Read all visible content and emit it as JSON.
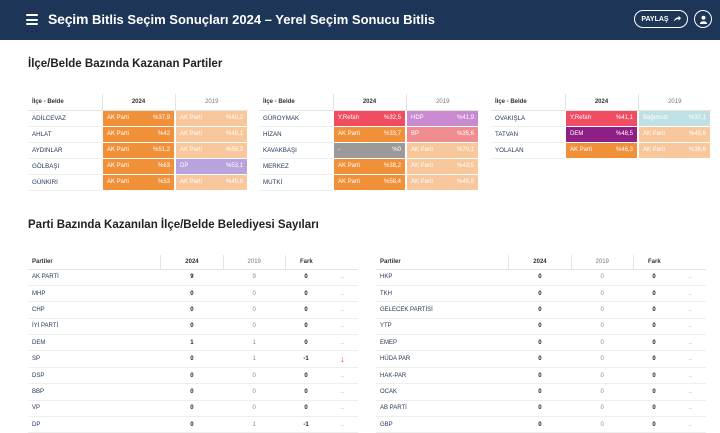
{
  "header": {
    "brand": "Seçim",
    "title": "Bitlis Seçim Sonuçları 2024 – Yerel Seçim Sonucu Bitlis",
    "share_label": "PAYLAŞ"
  },
  "colors": {
    "header_bg": "#1d3557",
    "ak_2024": "#f0913a",
    "ak_2019": "#f8c79b",
    "yrefah": "#f04d63",
    "hdp": "#c98ad0",
    "bp": "#ef8c90",
    "dp_2019": "#b9a3dd",
    "dem": "#8f1f86",
    "bagimsiz": "#bfe1e6",
    "empty": "#9a9a9a"
  },
  "section1": {
    "title": "İlçe/Belde Bazında Kazanan Partiler"
  },
  "district_tables": [
    {
      "headers": {
        "name": "İlçe - Belde",
        "y2024": "2024",
        "y2019": "2019"
      },
      "rows": [
        {
          "name": "ADİLCEVAZ",
          "r24": {
            "party": "AK Parti",
            "pct": "%37,9",
            "color": "#f0913a"
          },
          "r19": {
            "party": "AK Parti",
            "pct": "%40,2",
            "color": "#f8c79b"
          }
        },
        {
          "name": "AHLAT",
          "r24": {
            "party": "AK Parti",
            "pct": "%42",
            "color": "#f0913a"
          },
          "r19": {
            "party": "AK Parti",
            "pct": "%48,1",
            "color": "#f8c79b"
          }
        },
        {
          "name": "AYDINLAR",
          "r24": {
            "party": "AK Parti",
            "pct": "%51,2",
            "color": "#f0913a"
          },
          "r19": {
            "party": "AK Parti",
            "pct": "%58,3",
            "color": "#f8c79b"
          }
        },
        {
          "name": "GÖLBAŞI",
          "r24": {
            "party": "AK Parti",
            "pct": "%63",
            "color": "#f0913a"
          },
          "r19": {
            "party": "DP",
            "pct": "%53,1",
            "color": "#b9a3dd"
          }
        },
        {
          "name": "GÜNKIRI",
          "r24": {
            "party": "AK Parti",
            "pct": "%53",
            "color": "#f0913a"
          },
          "r19": {
            "party": "AK Parti",
            "pct": "%45,8",
            "color": "#f8c79b"
          }
        }
      ]
    },
    {
      "headers": {
        "name": "İlçe - Belde",
        "y2024": "2024",
        "y2019": "2019"
      },
      "rows": [
        {
          "name": "GÜROYMAK",
          "r24": {
            "party": "Y.Refah",
            "pct": "%32,5",
            "color": "#f04d63"
          },
          "r19": {
            "party": "HDP",
            "pct": "%41,9",
            "color": "#c98ad0"
          }
        },
        {
          "name": "HİZAN",
          "r24": {
            "party": "AK Parti",
            "pct": "%33,7",
            "color": "#f0913a"
          },
          "r19": {
            "party": "BP",
            "pct": "%35,6",
            "color": "#ef8c90"
          }
        },
        {
          "name": "KAVAKBAŞI",
          "r24": {
            "party": "-",
            "pct": "%0",
            "color": "#9a9a9a"
          },
          "r19": {
            "party": "AK Parti",
            "pct": "%70,1",
            "color": "#f8c79b"
          }
        },
        {
          "name": "MERKEZ",
          "r24": {
            "party": "AK Parti",
            "pct": "%38,2",
            "color": "#f0913a"
          },
          "r19": {
            "party": "AK Parti",
            "pct": "%43,5",
            "color": "#f8c79b"
          }
        },
        {
          "name": "MUTKİ",
          "r24": {
            "party": "AK Parti",
            "pct": "%58,4",
            "color": "#f0913a"
          },
          "r19": {
            "party": "AK Parti",
            "pct": "%45,8",
            "color": "#f8c79b"
          }
        }
      ]
    },
    {
      "headers": {
        "name": "İlçe - Belde",
        "y2024": "2024",
        "y2019": "2019"
      },
      "rows": [
        {
          "name": "OVAKIŞLA",
          "r24": {
            "party": "Y.Refah",
            "pct": "%41,1",
            "color": "#f04d63"
          },
          "r19": {
            "party": "Bağımsız",
            "pct": "%37,1",
            "color": "#bfe1e6"
          }
        },
        {
          "name": "TATVAN",
          "r24": {
            "party": "DEM",
            "pct": "%48,5",
            "color": "#8f1f86"
          },
          "r19": {
            "party": "AK Parti",
            "pct": "%45,6",
            "color": "#f8c79b"
          }
        },
        {
          "name": "YOLALAN",
          "r24": {
            "party": "AK Parti",
            "pct": "%46,3",
            "color": "#f0913a"
          },
          "r19": {
            "party": "AK Parti",
            "pct": "%36,6",
            "color": "#f8c79b"
          }
        }
      ]
    }
  ],
  "section2": {
    "title": "Parti Bazında Kazanılan İlçe/Belde Belediyesi Sayıları"
  },
  "party_tables": [
    {
      "headers": {
        "name": "Partiler",
        "y2024": "2024",
        "y2019": "2019",
        "diff": "Fark"
      },
      "rows": [
        {
          "name": "AK PARTİ",
          "v24": "9",
          "v19": "9",
          "diff": "0",
          "trend": "..",
          "down": false
        },
        {
          "name": "MHP",
          "v24": "0",
          "v19": "0",
          "diff": "0",
          "trend": "..",
          "down": false
        },
        {
          "name": "CHP",
          "v24": "0",
          "v19": "0",
          "diff": "0",
          "trend": "..",
          "down": false
        },
        {
          "name": "İYİ PARTİ",
          "v24": "0",
          "v19": "0",
          "diff": "0",
          "trend": "..",
          "down": false
        },
        {
          "name": "DEM",
          "v24": "1",
          "v19": "1",
          "diff": "0",
          "trend": "..",
          "down": false
        },
        {
          "name": "SP",
          "v24": "0",
          "v19": "1",
          "diff": "-1",
          "trend": "↓",
          "down": true
        },
        {
          "name": "DSP",
          "v24": "0",
          "v19": "0",
          "diff": "0",
          "trend": "..",
          "down": false
        },
        {
          "name": "BBP",
          "v24": "0",
          "v19": "0",
          "diff": "0",
          "trend": "..",
          "down": false
        },
        {
          "name": "VP",
          "v24": "0",
          "v19": "0",
          "diff": "0",
          "trend": "..",
          "down": false
        },
        {
          "name": "DP",
          "v24": "0",
          "v19": "1",
          "diff": "-1",
          "trend": "..",
          "down": false
        }
      ]
    },
    {
      "headers": {
        "name": "Partiler",
        "y2024": "2024",
        "y2019": "2019",
        "diff": "Fark"
      },
      "rows": [
        {
          "name": "HKP",
          "v24": "0",
          "v19": "0",
          "diff": "0",
          "trend": "..",
          "down": false
        },
        {
          "name": "TKH",
          "v24": "0",
          "v19": "0",
          "diff": "0",
          "trend": "..",
          "down": false
        },
        {
          "name": "GELECEK PARTİSİ",
          "v24": "0",
          "v19": "0",
          "diff": "0",
          "trend": "..",
          "down": false
        },
        {
          "name": "YTP",
          "v24": "0",
          "v19": "0",
          "diff": "0",
          "trend": "..",
          "down": false
        },
        {
          "name": "EMEP",
          "v24": "0",
          "v19": "0",
          "diff": "0",
          "trend": "..",
          "down": false
        },
        {
          "name": "HÜDA PAR",
          "v24": "0",
          "v19": "0",
          "diff": "0",
          "trend": "..",
          "down": false
        },
        {
          "name": "HAK-PAR",
          "v24": "0",
          "v19": "0",
          "diff": "0",
          "trend": "..",
          "down": false
        },
        {
          "name": "OCAK",
          "v24": "0",
          "v19": "0",
          "diff": "0",
          "trend": "..",
          "down": false
        },
        {
          "name": "AB PARTİ",
          "v24": "0",
          "v19": "0",
          "diff": "0",
          "trend": "..",
          "down": false
        },
        {
          "name": "GBP",
          "v24": "0",
          "v19": "0",
          "diff": "0",
          "trend": "..",
          "down": false
        }
      ]
    }
  ]
}
